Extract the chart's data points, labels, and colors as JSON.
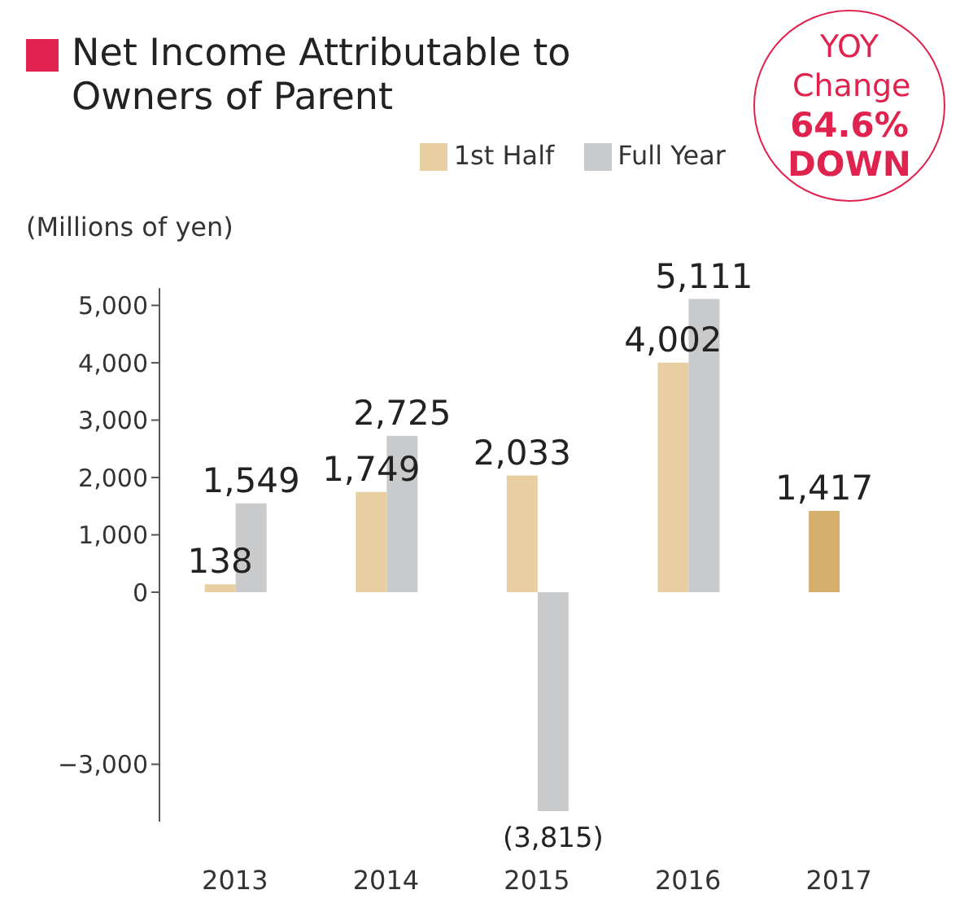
{
  "chart_data": {
    "type": "bar",
    "title": "Net Income Attributable to Owners of Parent",
    "ylabel": "(Millions of yen)",
    "categories": [
      "2013",
      "2014",
      "2015",
      "2016",
      "2017"
    ],
    "series": [
      {
        "name": "1st Half",
        "color": "#e8cfa2",
        "colors": [
          "#e8cfa2",
          "#e8cfa2",
          "#e8cfa2",
          "#e8cfa2",
          "#d4b06c"
        ],
        "values": [
          138,
          1749,
          2033,
          4002,
          1417
        ],
        "value_labels": [
          "138",
          "1,749",
          "2,033",
          "4,002",
          "1,417"
        ]
      },
      {
        "name": "Full Year",
        "color": "#c9cacc",
        "values": [
          1549,
          2725,
          -3815,
          5111,
          null
        ],
        "value_labels": [
          "1,549",
          "2,725",
          "(3,815)",
          "5,111",
          null
        ]
      }
    ],
    "ylim": [
      -4000,
      5300
    ],
    "yticks": [
      {
        "value": -3000,
        "label": "−3,000"
      },
      0,
      {
        "value": 1000,
        "label": "1,000"
      },
      {
        "value": 2000,
        "label": "2,000"
      },
      {
        "value": 3000,
        "label": "3,000"
      },
      {
        "value": 4000,
        "label": "4,000"
      },
      {
        "value": 5000,
        "label": "5,000"
      }
    ],
    "grid": false,
    "legend": "top right",
    "annotations": [
      "YOY Change",
      "64.6% DOWN"
    ]
  }
}
